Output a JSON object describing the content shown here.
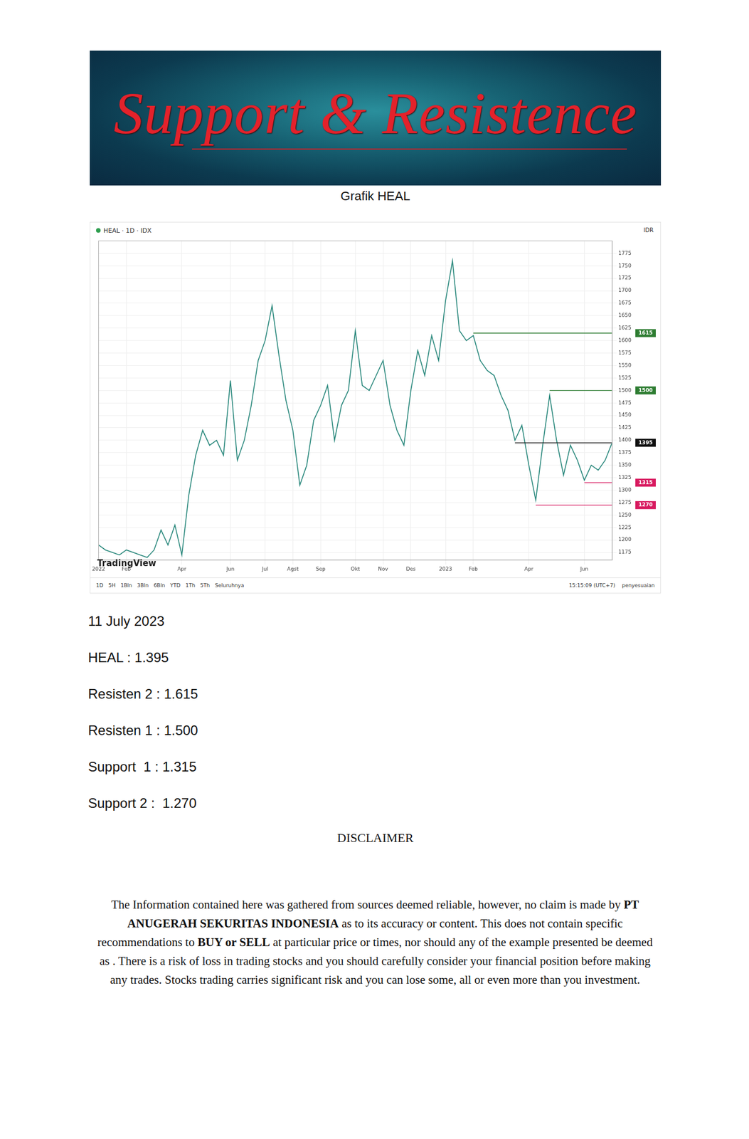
{
  "header": {
    "title": "Support & Resistence"
  },
  "caption": "Grafik HEAL",
  "chart_data": {
    "type": "line",
    "title": "HEAL · 1D · IDX",
    "unit_label": "IDR",
    "watermark": "TradingView",
    "toolbar": [
      "1D",
      "5H",
      "1Bln",
      "3Bln",
      "6Bln",
      "YTD",
      "1Th",
      "5Th",
      "Seluruhnya"
    ],
    "timestamp": "15:15:09 (UTC+7)",
    "adjust_label": "penyesuaian",
    "categories": [
      "2022",
      null,
      null,
      null,
      "Feb",
      null,
      null,
      null,
      null,
      null,
      null,
      null,
      "Apr",
      null,
      null,
      null,
      null,
      null,
      null,
      "Jun",
      null,
      null,
      null,
      null,
      "Jul",
      null,
      null,
      null,
      "Agst",
      null,
      null,
      null,
      "Sep",
      null,
      null,
      null,
      null,
      "Okt",
      null,
      null,
      null,
      "Nov",
      null,
      null,
      null,
      "Des",
      null,
      null,
      null,
      null,
      "2023",
      null,
      null,
      null,
      "Feb",
      null,
      null,
      null,
      null,
      null,
      null,
      null,
      "Apr",
      null,
      null,
      null,
      null,
      null,
      null,
      null,
      "Jun",
      null,
      null,
      null,
      null
    ],
    "series": [
      {
        "name": "HEAL",
        "color": "#26867a",
        "values": [
          1190,
          1180,
          1175,
          1170,
          1180,
          1175,
          1170,
          1165,
          1180,
          1220,
          1190,
          1230,
          1170,
          1290,
          1370,
          1420,
          1390,
          1400,
          1370,
          1520,
          1360,
          1400,
          1470,
          1560,
          1600,
          1670,
          1570,
          1480,
          1420,
          1310,
          1350,
          1440,
          1470,
          1510,
          1400,
          1470,
          1500,
          1620,
          1510,
          1500,
          1530,
          1560,
          1470,
          1420,
          1390,
          1500,
          1580,
          1530,
          1610,
          1560,
          1680,
          1760,
          1620,
          1600,
          1610,
          1560,
          1540,
          1530,
          1490,
          1460,
          1400,
          1430,
          1350,
          1280,
          1390,
          1490,
          1400,
          1330,
          1390,
          1360,
          1320,
          1350,
          1340,
          1360,
          1395
        ]
      }
    ],
    "levels": [
      {
        "value": 1615,
        "color": "#2e7d32",
        "x_start": 54
      },
      {
        "value": 1500,
        "color": "#2e7d32",
        "x_start": 65
      },
      {
        "value": 1395,
        "color": "#111111",
        "x_start": 60
      },
      {
        "value": 1315,
        "color": "#d81b60",
        "x_start": 70
      },
      {
        "value": 1270,
        "color": "#d81b60",
        "x_start": 63
      }
    ],
    "ylim": [
      1160,
      1800
    ],
    "yticks": [
      1175,
      1200,
      1225,
      1250,
      1275,
      1300,
      1325,
      1350,
      1375,
      1400,
      1425,
      1450,
      1475,
      1500,
      1525,
      1550,
      1575,
      1600,
      1625,
      1650,
      1675,
      1700,
      1725,
      1750,
      1775
    ],
    "grid": true
  },
  "report": [
    "11 July 2023",
    "HEAL : 1.395",
    "Resisten 2 : 1.615",
    "Resisten 1 : 1.500",
    "Support  1 : 1.315",
    "Support 2 :  1.270"
  ],
  "disclaimer": {
    "title": "DISCLAIMER",
    "segments": [
      {
        "text": "The Information contained here was gathered from sources deemed reliable, however, no claim is made by ",
        "bold": false
      },
      {
        "text": "PT ANUGERAH SEKURITAS INDONESIA",
        "bold": true
      },
      {
        "text": " as to its accuracy or content. This does not contain specific recommendations to ",
        "bold": false
      },
      {
        "text": "BUY or SELL",
        "bold": true
      },
      {
        "text": " at particular price or times, nor should any of the example presented be deemed as . There is a risk of loss in trading stocks and you should carefully consider your financial position before making any trades. Stocks trading carries significant risk and you can lose some, all or even more than you investment.",
        "bold": false
      }
    ]
  }
}
